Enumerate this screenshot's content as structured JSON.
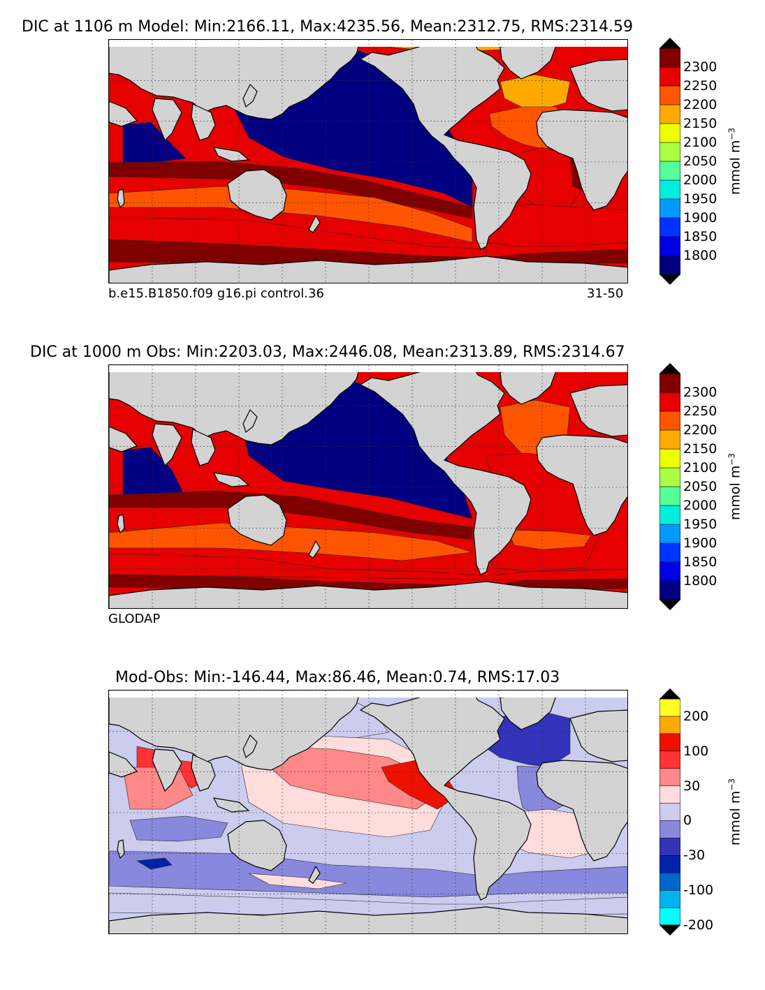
{
  "panels": [
    {
      "title": "DIC at 1106 m Model: Min:2166.11, Max:4235.56, Mean:2312.75, RMS:2314.59",
      "caption_left": "b.e15.B1850.f09 g16.pi control.36",
      "caption_right": "31-50",
      "unit": "mmol m",
      "unit_exp": "−3",
      "colorbar": {
        "ticks": [
          "2300",
          "2250",
          "2200",
          "2150",
          "2100",
          "2050",
          "2000",
          "1950",
          "1900",
          "1850",
          "1800"
        ],
        "colors": [
          "#000080",
          "#0000e6",
          "#0033ff",
          "#0099ff",
          "#00eedd",
          "#55ff99",
          "#aaff44",
          "#eeff00",
          "#ffaa00",
          "#ff5500",
          "#e60000",
          "#800000"
        ],
        "extend_low_color": "#000000",
        "extend_high_color": "#000000"
      }
    },
    {
      "title": "DIC at 1000 m Obs: Min:2203.03, Max:2446.08, Mean:2313.89, RMS:2314.67",
      "caption_left": "GLODAP",
      "caption_right": "",
      "unit": "mmol m",
      "unit_exp": "−3",
      "colorbar": {
        "ticks": [
          "2300",
          "2250",
          "2200",
          "2150",
          "2100",
          "2050",
          "2000",
          "1950",
          "1900",
          "1850",
          "1800"
        ],
        "colors": [
          "#000080",
          "#0000e6",
          "#0033ff",
          "#0099ff",
          "#00eedd",
          "#55ff99",
          "#aaff44",
          "#eeff00",
          "#ffaa00",
          "#ff5500",
          "#e60000",
          "#800000"
        ],
        "extend_low_color": "#000000",
        "extend_high_color": "#000000"
      }
    },
    {
      "title": "Mod-Obs: Min:-146.44, Max:86.46, Mean:0.74, RMS:17.03",
      "caption_left": "",
      "caption_right": "",
      "unit": "mmol m",
      "unit_exp": "−3",
      "colorbar": {
        "ticks": [
          "200",
          "100",
          "30",
          "0",
          "-30",
          "-100",
          "-200"
        ],
        "colors": [
          "#00ffff",
          "#00b3ee",
          "#0066cc",
          "#0022aa",
          "#3333bb",
          "#8888dd",
          "#ccccee",
          "#ffdddd",
          "#ff8888",
          "#ff3333",
          "#ee1100",
          "#ffaa00",
          "#ffff22"
        ],
        "extend_low_color": "#000000",
        "extend_high_color": "#000000"
      }
    }
  ],
  "land_color": "#d3d3d3",
  "missing_color": "#ffffff"
}
